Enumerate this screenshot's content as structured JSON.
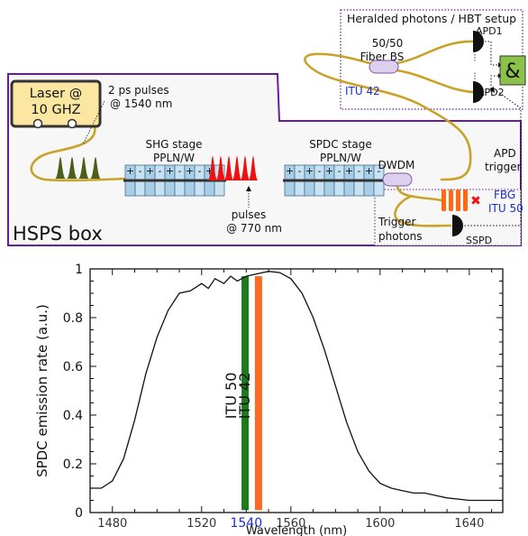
{
  "diagram": {
    "hbt_title": "Heralded photons / HBT setup",
    "bs_label_1": "50/50",
    "bs_label_2": "Fiber BS",
    "itu42": "ITU 42",
    "apd1": "APD1",
    "apd2": "APD2",
    "and_symbol": "&",
    "apd_trigger_1": "APD",
    "apd_trigger_2": "trigger",
    "laser_1": "Laser @",
    "laser_2": "10 GHZ",
    "pulses_2ps_1": "2 ps pulses",
    "pulses_2ps_2": "@ 1540 nm",
    "shg_1": "SHG stage",
    "shg_2": "PPLN/W",
    "spdc_1": "SPDC stage",
    "spdc_2": "PPLN/W",
    "pulses770_1": "pulses",
    "pulses770_2": "@ 770 nm",
    "dwdm": "DWDM",
    "fbg_1": "FBG",
    "fbg_2": "ITU 50",
    "trigger_1": "Trigger",
    "trigger_2": "photons",
    "sspd": "SSPD",
    "hsps_box": "HSPS box",
    "colors": {
      "box_border": "#6a1b9a",
      "fiber": "#c9a227",
      "laser_fill": "#fbe7a1",
      "crystal": "#a9cfe8",
      "red_pulse": "#ee1111",
      "green_pulse": "#4b5e1a",
      "and_gate": "#8bc34a",
      "fbg": "#ff6a13",
      "bs": "#ddd0ee",
      "itu_text": "#1a2ccf"
    }
  },
  "chart_data": {
    "type": "line",
    "xlabel": "Wavelength (nm)",
    "ylabel": "SPDC emission rate (a.u.)",
    "xlim": [
      1470,
      1655
    ],
    "ylim": [
      0,
      1
    ],
    "x_ticks": [
      1480,
      1520,
      1540,
      1560,
      1600,
      1640
    ],
    "x_tick_labels": [
      "1480",
      "1520",
      "1540",
      "1560",
      "1600",
      "1640"
    ],
    "y_ticks": [
      0,
      0.2,
      0.4,
      0.6,
      0.8,
      1
    ],
    "y_tick_labels": [
      "0",
      "0.2",
      "0.4",
      "0.6",
      "0.8",
      "1"
    ],
    "highlight_tick": "1540",
    "series": [
      {
        "x": [
          1470,
          1475,
          1480,
          1485,
          1490,
          1495,
          1500,
          1505,
          1510,
          1515,
          1520,
          1523,
          1526,
          1530,
          1533,
          1536,
          1540,
          1545,
          1550,
          1555,
          1560,
          1565,
          1570,
          1575,
          1580,
          1585,
          1590,
          1595,
          1600,
          1605,
          1610,
          1615,
          1620,
          1625,
          1630,
          1635,
          1640,
          1645,
          1650,
          1655
        ],
        "y": [
          0.1,
          0.1,
          0.13,
          0.22,
          0.38,
          0.57,
          0.72,
          0.83,
          0.9,
          0.91,
          0.94,
          0.92,
          0.96,
          0.94,
          0.97,
          0.95,
          0.97,
          0.98,
          0.99,
          0.985,
          0.96,
          0.9,
          0.8,
          0.67,
          0.52,
          0.37,
          0.25,
          0.17,
          0.12,
          0.1,
          0.09,
          0.08,
          0.08,
          0.07,
          0.06,
          0.055,
          0.05,
          0.05,
          0.05,
          0.05
        ]
      }
    ],
    "bands": [
      {
        "label": "ITU 50",
        "x": 1539.5,
        "color": "#1e7a1e"
      },
      {
        "label": "ITU 42",
        "x": 1545.5,
        "color": "#ff6a22"
      }
    ]
  }
}
